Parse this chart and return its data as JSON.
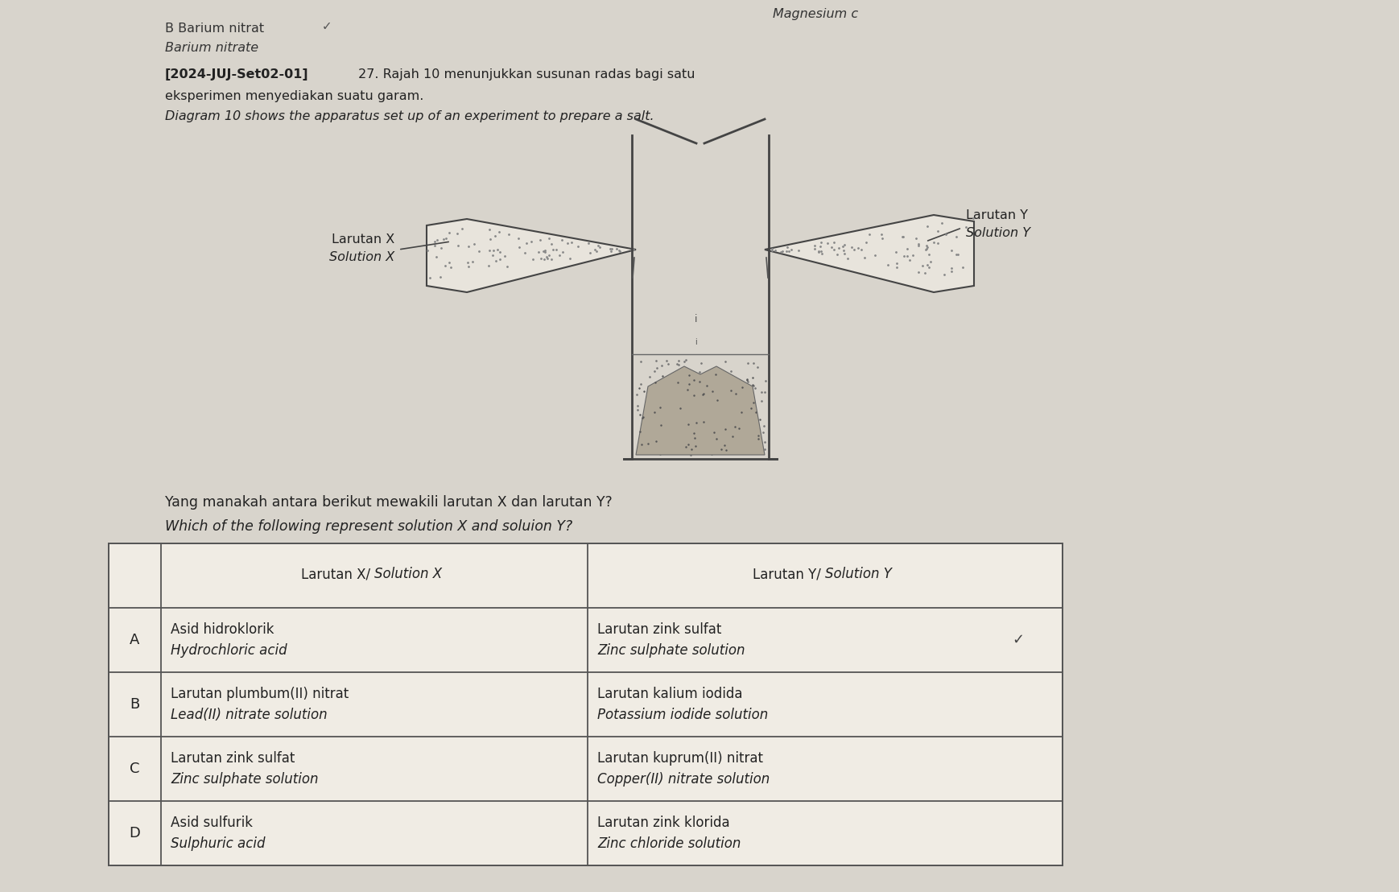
{
  "background_color": "#d4d0c8",
  "top_left_line1": "B Barium nitrat",
  "top_left_line1_suffix": " ✓",
  "top_left_line2": "Barium nitrate",
  "top_right_text": "Magnesium c",
  "header_bold": "[2024-JUJ-Set02-01]",
  "header_rest": " 27. Rajah 10 menunjukkan susunan radas bagi satu",
  "header_line2": "eksperimen menyediakan suatu garam.",
  "header_line3": "Diagram 10 shows the apparatus set up of an experiment to prepare a salt.",
  "label_x_malay": "Larutan X",
  "label_x_eng": "Solution X",
  "label_y_malay": "Larutan Y",
  "label_y_eng": "Solution Y",
  "question_malay": "Yang manakah antara berikut mewakili larutan X dan larutan Y?",
  "question_eng": "Which of the following represent solution X and soluion Y?",
  "table_headers": [
    "",
    "Larutan X/ Solution X",
    "Larutan Y/ Solution Y"
  ],
  "rows": [
    [
      "A",
      "Asid hidroklorik",
      "Hydrochloric acid",
      "Larutan zink sulfat",
      "Zinc sulphate solution"
    ],
    [
      "B",
      "Larutan plumbum(II) nitrat",
      "Lead(II) nitrate solution",
      "Larutan kalium iodida",
      "Potassium iodide solution"
    ],
    [
      "C",
      "Larutan zink sulfat",
      "Zinc sulphate solution",
      "Larutan kuprum(II) nitrat",
      "Copper(II) nitrate solution"
    ],
    [
      "D",
      "Asid sulfurik",
      "Sulphuric acid",
      "Larutan zink klorida",
      "Zinc chloride solution"
    ]
  ],
  "checkmark_row": 0
}
